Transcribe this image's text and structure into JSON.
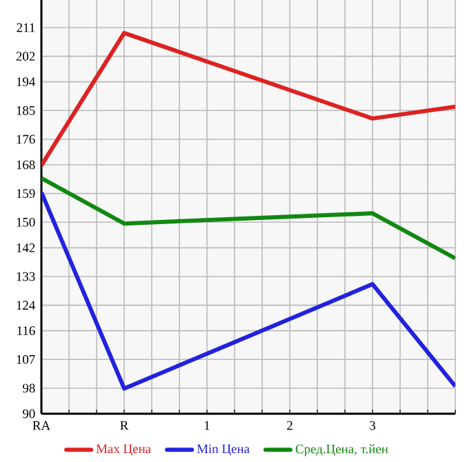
{
  "chart_data": {
    "type": "line",
    "categories": [
      "RA",
      "R",
      "1",
      "2",
      "3",
      null
    ],
    "series": [
      {
        "name": "Max Цена",
        "color": "#dd2222",
        "values": [
          167.8,
          209.3,
          null,
          null,
          182.5,
          186.2
        ]
      },
      {
        "name": "Min Цена",
        "color": "#2222dd",
        "values": [
          159.4,
          97.9,
          null,
          null,
          130.6,
          98.6
        ]
      },
      {
        "name": "Сред.Цена, т.йен",
        "color": "#118811",
        "values": [
          163.8,
          149.6,
          null,
          null,
          152.8,
          138.7
        ]
      }
    ],
    "ylim": [
      90,
      219.64
    ],
    "yticks": [
      90,
      98,
      107,
      116,
      124,
      133,
      142,
      150,
      159,
      168,
      176,
      185,
      194,
      202,
      211
    ],
    "grid": true,
    "legend": "bottom",
    "marker": "none",
    "line_style": "solid"
  }
}
